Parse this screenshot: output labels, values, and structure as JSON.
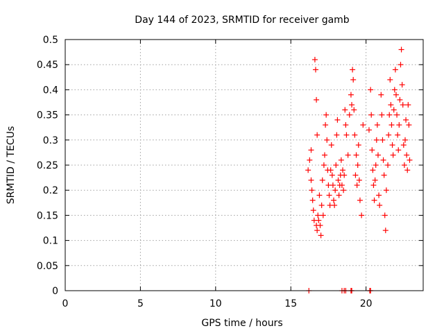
{
  "chart_data": {
    "type": "scatter",
    "title": "Day 144 of 2023, SRMTID for receiver gamb",
    "xlabel": "GPS time / hours",
    "ylabel": "SRMTID / TECUs",
    "xlim": [
      0,
      23.8
    ],
    "ylim": [
      0,
      0.5
    ],
    "xticks": [
      "0",
      "5",
      "10",
      "15",
      "20"
    ],
    "xtick_values": [
      0,
      5,
      10,
      15,
      20
    ],
    "yticks": [
      "0",
      "0.05",
      "0.1",
      "0.15",
      "0.2",
      "0.25",
      "0.3",
      "0.35",
      "0.4",
      "0.45",
      "0.5"
    ],
    "ytick_values": [
      0,
      0.05,
      0.1,
      0.15,
      0.2,
      0.25,
      0.3,
      0.35,
      0.4,
      0.45,
      0.5
    ],
    "grid": true,
    "marker": "+",
    "color": "#ff0000",
    "series": [
      {
        "x": [
          16.15,
          16.25,
          16.35,
          16.35,
          16.4,
          16.45,
          16.5,
          16.55,
          16.6,
          16.65,
          16.7,
          16.7,
          16.75,
          16.75,
          16.8,
          16.85,
          16.9,
          16.95,
          17.0,
          17.05,
          17.1,
          17.15,
          17.2,
          17.25,
          17.3,
          17.35,
          17.4,
          17.45,
          17.5,
          17.55,
          17.6,
          17.65,
          17.7,
          17.75,
          17.8,
          17.85,
          17.9,
          17.95,
          18.0,
          18.05,
          18.1,
          18.15,
          18.2,
          18.25,
          18.3,
          18.35,
          18.4,
          18.45,
          18.5,
          18.55,
          18.6,
          18.65,
          18.7,
          18.8,
          18.9,
          19.0,
          19.05,
          19.1,
          19.15,
          19.2,
          19.25,
          19.3,
          19.35,
          19.4,
          19.45,
          19.5,
          19.55,
          19.6,
          19.7,
          19.8,
          20.2,
          20.3,
          20.35,
          20.4,
          20.45,
          20.5,
          20.55,
          20.6,
          20.65,
          20.7,
          20.75,
          20.8,
          20.85,
          20.9,
          21.0,
          21.05,
          21.1,
          21.15,
          21.2,
          21.25,
          21.3,
          21.35,
          21.45,
          21.5,
          21.55,
          21.6,
          21.65,
          21.7,
          21.75,
          21.8,
          21.85,
          21.9,
          21.95,
          22.0,
          22.05,
          22.1,
          22.15,
          22.2,
          22.25,
          22.3,
          22.35,
          22.4,
          22.45,
          22.5,
          22.55,
          22.6,
          22.65,
          22.7,
          22.75,
          22.8,
          22.85,
          22.9
        ],
        "y": [
          0.24,
          0.26,
          0.22,
          0.28,
          0.2,
          0.18,
          0.16,
          0.14,
          0.46,
          0.44,
          0.38,
          0.13,
          0.31,
          0.12,
          0.15,
          0.14,
          0.19,
          0.13,
          0.11,
          0.17,
          0.22,
          0.15,
          0.25,
          0.27,
          0.33,
          0.35,
          0.3,
          0.24,
          0.21,
          0.19,
          0.17,
          0.24,
          0.29,
          0.23,
          0.21,
          0.18,
          0.17,
          0.2,
          0.25,
          0.31,
          0.34,
          0.22,
          0.19,
          0.21,
          0.23,
          0.26,
          0.21,
          0.24,
          0.2,
          0.23,
          0.36,
          0.33,
          0.31,
          0.27,
          0.35,
          0.39,
          0.37,
          0.44,
          0.42,
          0.36,
          0.31,
          0.23,
          0.27,
          0.21,
          0.25,
          0.29,
          0.22,
          0.18,
          0.15,
          0.33,
          0.32,
          0.4,
          0.35,
          0.28,
          0.24,
          0.21,
          0.18,
          0.22,
          0.25,
          0.3,
          0.33,
          0.27,
          0.19,
          0.17,
          0.39,
          0.35,
          0.3,
          0.26,
          0.23,
          0.15,
          0.12,
          0.2,
          0.25,
          0.31,
          0.35,
          0.42,
          0.37,
          0.33,
          0.29,
          0.27,
          0.36,
          0.4,
          0.44,
          0.39,
          0.35,
          0.31,
          0.28,
          0.33,
          0.38,
          0.45,
          0.48,
          0.41,
          0.37,
          0.29,
          0.25,
          0.3,
          0.34,
          0.27,
          0.24,
          0.37,
          0.33,
          0.26
        ]
      },
      {
        "x": [
          16.2,
          18.4,
          18.55,
          18.65,
          19.0,
          19.05,
          20.25,
          20.3
        ],
        "y": [
          0,
          0,
          0,
          0,
          0,
          0,
          0,
          0
        ]
      }
    ]
  }
}
